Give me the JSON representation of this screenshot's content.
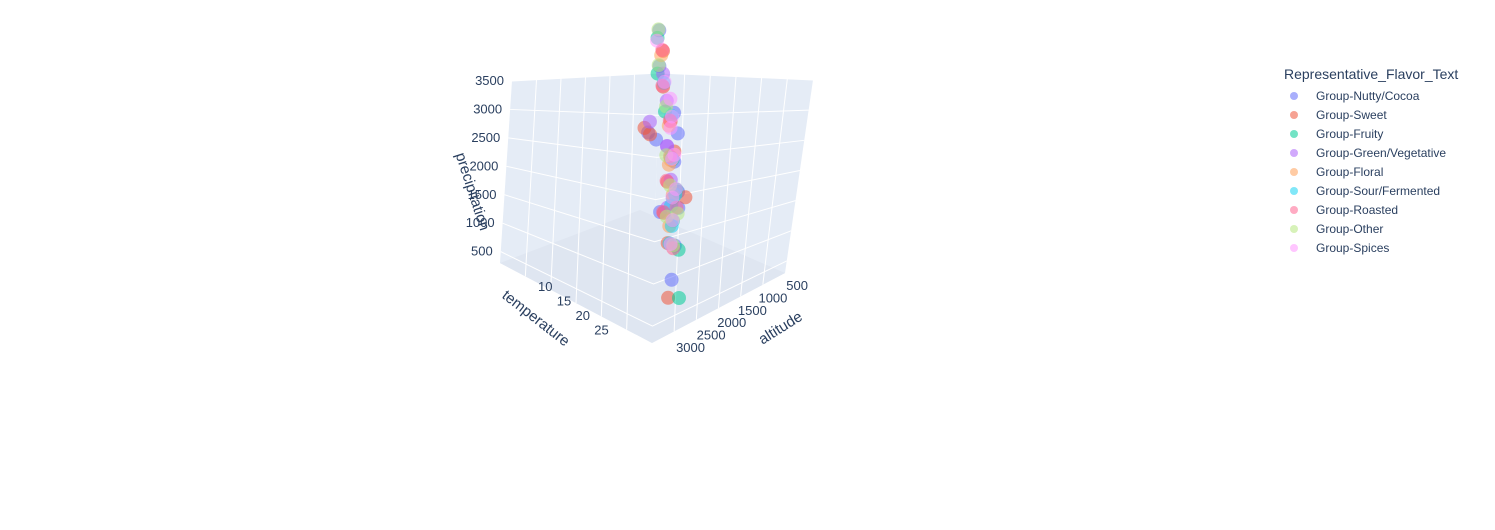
{
  "chart_data": {
    "type": "scatter3d",
    "legend_title": "Representative_Flavor_Text",
    "legend_position": "top-right",
    "axes": {
      "x": {
        "label": "altitude",
        "range": [
          0,
          3500
        ],
        "ticks": [
          500,
          1000,
          1500,
          2000,
          2500,
          3000
        ]
      },
      "y": {
        "label": "temperature",
        "range": [
          8,
          28
        ],
        "ticks": [
          10,
          15,
          20,
          25
        ]
      },
      "z": {
        "label": "precipitation",
        "range": [
          300,
          3500
        ],
        "ticks": [
          500,
          1000,
          1500,
          2000,
          2500,
          3000,
          3500
        ]
      }
    },
    "grid": true,
    "series": [
      {
        "name": "Group-Nutty/Cocoa",
        "color": "#636efa",
        "points": [
          [
            1200,
            18,
            1600
          ],
          [
            1500,
            20,
            1400
          ],
          [
            1800,
            19,
            1100
          ],
          [
            1000,
            17,
            2200
          ],
          [
            2000,
            22,
            900
          ],
          [
            1300,
            16,
            1800
          ],
          [
            800,
            14,
            2600
          ],
          [
            600,
            13,
            3000
          ],
          [
            1700,
            21,
            1300
          ],
          [
            2500,
            24,
            700
          ],
          [
            300,
            10,
            1100
          ],
          [
            1100,
            18,
            2000
          ]
        ]
      },
      {
        "name": "Group-Sweet",
        "color": "#ef553b",
        "points": [
          [
            1300,
            18,
            1700
          ],
          [
            1600,
            19,
            1500
          ],
          [
            1900,
            20,
            1200
          ],
          [
            1100,
            17,
            2100
          ],
          [
            2200,
            22,
            1000
          ],
          [
            900,
            15,
            2400
          ],
          [
            700,
            14,
            2800
          ],
          [
            1500,
            21,
            1400
          ],
          [
            2800,
            25,
            600
          ],
          [
            400,
            10,
            1200
          ],
          [
            450,
            11,
            1200
          ],
          [
            1400,
            19,
            1900
          ]
        ]
      },
      {
        "name": "Group-Fruity",
        "color": "#00cc96",
        "points": [
          [
            1250,
            18,
            1650
          ],
          [
            1550,
            20,
            1450
          ],
          [
            1850,
            21,
            1150
          ],
          [
            1050,
            16,
            2150
          ],
          [
            2100,
            23,
            950
          ],
          [
            850,
            14,
            2500
          ],
          [
            650,
            13,
            2900
          ],
          [
            1650,
            20,
            1350
          ],
          [
            2700,
            26,
            650
          ]
        ]
      },
      {
        "name": "Group-Green/Vegetative",
        "color": "#ab63fa",
        "points": [
          [
            1200,
            17,
            1750
          ],
          [
            1500,
            19,
            1500
          ],
          [
            1800,
            20,
            1250
          ],
          [
            1000,
            16,
            2300
          ],
          [
            250,
            10,
            1250
          ],
          [
            900,
            15,
            2600
          ],
          [
            1400,
            18,
            1900
          ]
        ]
      },
      {
        "name": "Group-Floral",
        "color": "#ffa15a",
        "points": [
          [
            1350,
            18,
            1600
          ],
          [
            1650,
            20,
            1400
          ],
          [
            1950,
            21,
            1100
          ],
          [
            1150,
            17,
            2050
          ],
          [
            750,
            14,
            2750
          ],
          [
            1500,
            19,
            1800
          ]
        ]
      },
      {
        "name": "Group-Sour/Fermented",
        "color": "#19d3f3",
        "points": [
          [
            1280,
            18,
            1680
          ],
          [
            1580,
            20,
            1380
          ],
          [
            1880,
            21,
            1080
          ],
          [
            1080,
            17,
            2180
          ],
          [
            2150,
            22,
            980
          ],
          [
            880,
            15,
            2450
          ],
          [
            1700,
            20,
            1250
          ]
        ]
      },
      {
        "name": "Group-Roasted",
        "color": "#ff6692",
        "points": [
          [
            1320,
            18,
            1720
          ],
          [
            1620,
            19,
            1520
          ],
          [
            1920,
            20,
            1220
          ],
          [
            1120,
            17,
            2120
          ],
          [
            2250,
            23,
            1020
          ],
          [
            920,
            15,
            2420
          ],
          [
            720,
            14,
            2820
          ],
          [
            1750,
            21,
            1320
          ]
        ]
      },
      {
        "name": "Group-Other",
        "color": "#b6e880",
        "points": [
          [
            1220,
            17,
            1620
          ],
          [
            1520,
            19,
            1420
          ],
          [
            1820,
            20,
            1120
          ],
          [
            1020,
            16,
            2220
          ],
          [
            2050,
            22,
            920
          ],
          [
            820,
            14,
            2620
          ],
          [
            620,
            13,
            3020
          ],
          [
            1720,
            21,
            1220
          ]
        ]
      },
      {
        "name": "Group-Spices",
        "color": "#ff97ff",
        "points": [
          [
            1260,
            18,
            1660
          ],
          [
            1560,
            20,
            1460
          ],
          [
            1860,
            21,
            1160
          ],
          [
            1060,
            17,
            2160
          ],
          [
            2120,
            22,
            960
          ],
          [
            860,
            15,
            2460
          ],
          [
            660,
            13,
            2860
          ],
          [
            1660,
            20,
            1360
          ],
          [
            1400,
            19,
            1850
          ],
          [
            900,
            16,
            2300
          ],
          [
            1100,
            17,
            2000
          ]
        ]
      }
    ]
  }
}
